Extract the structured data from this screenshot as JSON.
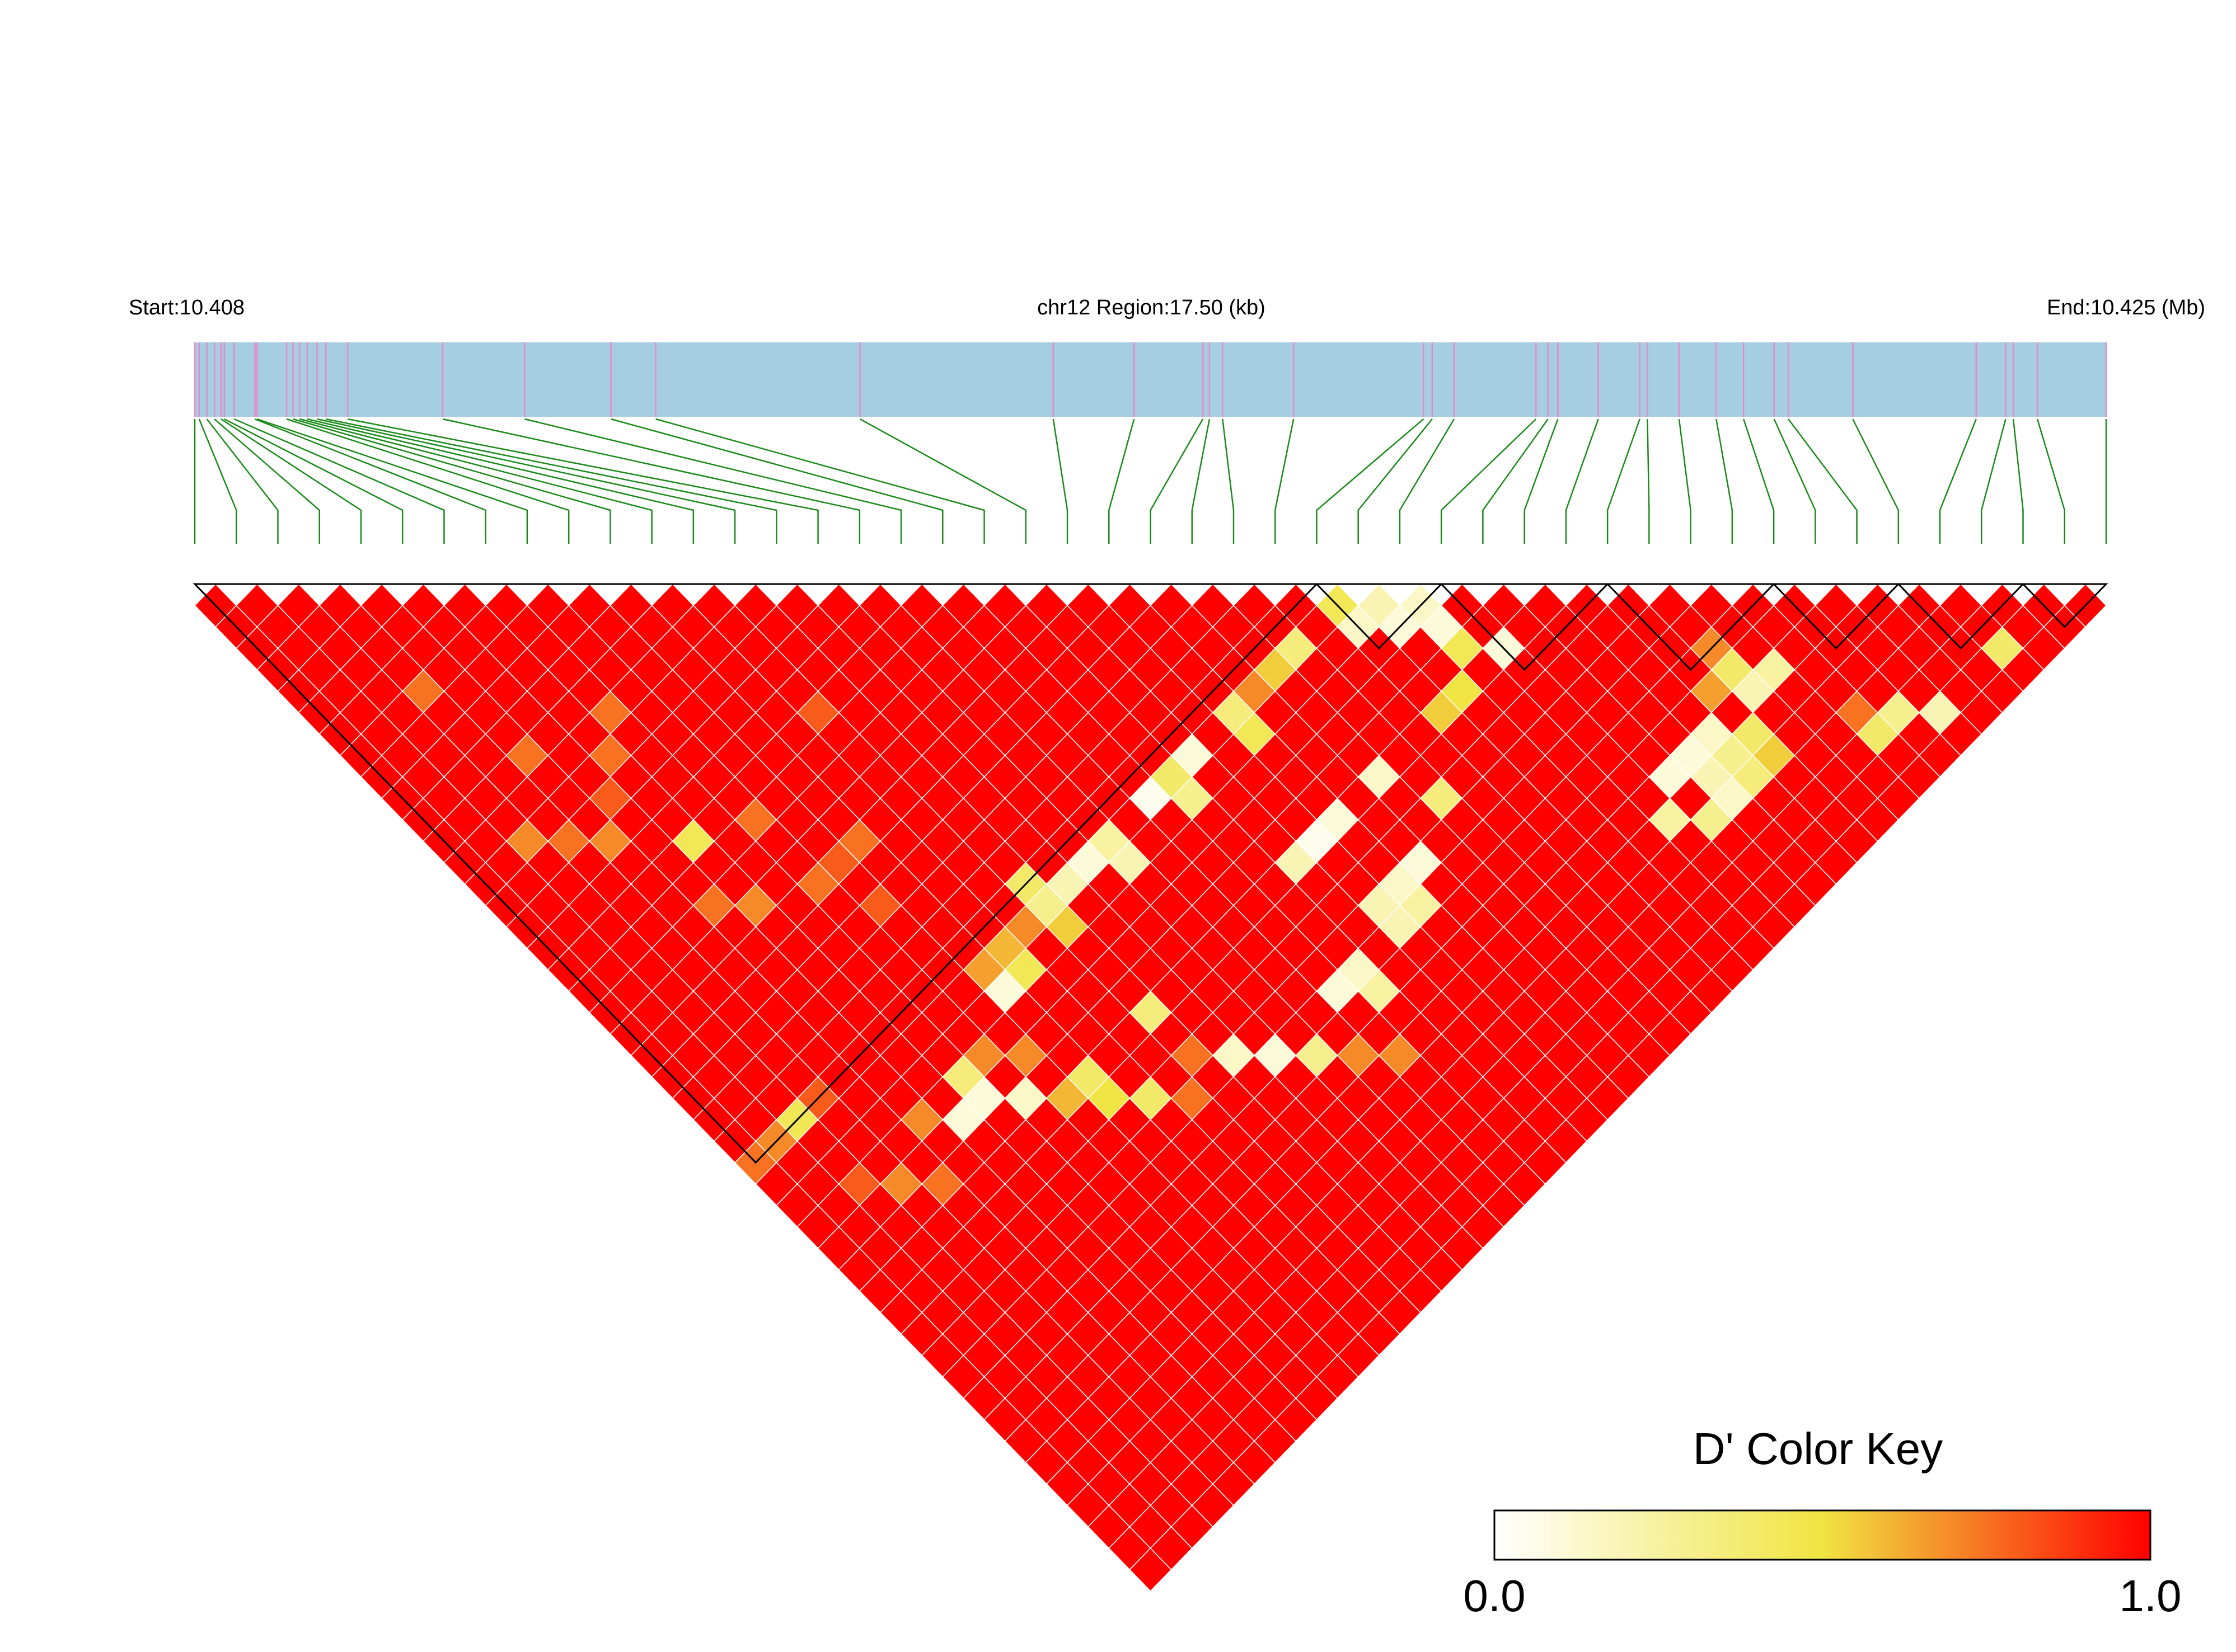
{
  "chart_data": {
    "type": "heatmap",
    "start_label": "Start:10.408",
    "region_label": "chr12 Region:17.50 (kb)",
    "end_label": "End:10.425 (Mb)",
    "snp_count": 47,
    "snp_positions_kb": [
      0.0,
      0.04,
      0.11,
      0.18,
      0.24,
      0.27,
      0.36,
      0.55,
      0.57,
      0.84,
      0.9,
      0.96,
      1.03,
      1.12,
      1.2,
      1.4,
      2.27,
      3.02,
      3.81,
      4.22,
      6.09,
      7.86,
      8.6,
      9.23,
      9.29,
      9.41,
      10.06,
      11.25,
      11.33,
      11.53,
      12.28,
      12.39,
      12.48,
      12.85,
      13.23,
      13.3,
      13.59,
      13.93,
      14.18,
      14.46,
      14.59,
      15.18,
      16.31,
      16.58,
      16.65,
      16.87,
      17.5
    ],
    "ld_blocks": [
      [
        0,
        27
      ],
      [
        27,
        30
      ],
      [
        30,
        34
      ],
      [
        34,
        38
      ],
      [
        38,
        41
      ],
      [
        41,
        44
      ],
      [
        44,
        46
      ]
    ],
    "anomalies": [
      {
        "i": 27,
        "j": 28,
        "v": 0.45
      },
      {
        "i": 28,
        "j": 29,
        "v": 0.2
      },
      {
        "i": 29,
        "j": 30,
        "v": 0.15
      },
      {
        "i": 27,
        "j": 29,
        "v": 0.15
      },
      {
        "i": 28,
        "j": 30,
        "v": 0.1
      },
      {
        "i": 25,
        "j": 28,
        "v": 0.35
      },
      {
        "i": 24,
        "j": 28,
        "v": 0.55
      },
      {
        "i": 23,
        "j": 28,
        "v": 0.7
      },
      {
        "i": 22,
        "j": 28,
        "v": 0.35
      },
      {
        "i": 20,
        "j": 28,
        "v": 0.1
      },
      {
        "i": 19,
        "j": 28,
        "v": 0.4
      },
      {
        "i": 18,
        "j": 28,
        "v": 0.05
      },
      {
        "i": 16,
        "j": 28,
        "v": 0.25
      },
      {
        "i": 15,
        "j": 28,
        "v": 0.1
      },
      {
        "i": 14,
        "j": 28,
        "v": 0.2
      },
      {
        "i": 13,
        "j": 28,
        "v": 0.3
      },
      {
        "i": 12,
        "j": 28,
        "v": 0.7
      },
      {
        "i": 11,
        "j": 28,
        "v": 0.6
      },
      {
        "i": 10,
        "j": 28,
        "v": 0.65
      },
      {
        "i": 10,
        "j": 29,
        "v": 0.1
      },
      {
        "i": 11,
        "j": 29,
        "v": 0.45
      },
      {
        "i": 13,
        "j": 29,
        "v": 0.55
      },
      {
        "i": 16,
        "j": 29,
        "v": 0.2
      },
      {
        "i": 19,
        "j": 29,
        "v": 0.3
      },
      {
        "i": 22,
        "j": 29,
        "v": 0.45
      },
      {
        "i": 29,
        "j": 31,
        "v": 0.1
      },
      {
        "i": 29,
        "j": 32,
        "v": 0.45
      },
      {
        "i": 30,
        "j": 33,
        "v": 0.1
      },
      {
        "i": 28,
        "j": 33,
        "v": 0.5
      },
      {
        "i": 27,
        "j": 33,
        "v": 0.55
      },
      {
        "i": 24,
        "j": 33,
        "v": 0.15
      },
      {
        "i": 22,
        "j": 33,
        "v": 0.1
      },
      {
        "i": 21,
        "j": 33,
        "v": 0.05
      },
      {
        "i": 20,
        "j": 33,
        "v": 0.2
      },
      {
        "i": 23,
        "j": 36,
        "v": 0.1
      },
      {
        "i": 22,
        "j": 36,
        "v": 0.15
      },
      {
        "i": 21,
        "j": 36,
        "v": 0.2
      },
      {
        "i": 21,
        "j": 37,
        "v": 0.2
      },
      {
        "i": 22,
        "j": 37,
        "v": 0.25
      },
      {
        "i": 35,
        "j": 38,
        "v": 0.7
      },
      {
        "i": 34,
        "j": 39,
        "v": 0.65
      },
      {
        "i": 35,
        "j": 39,
        "v": 0.4
      },
      {
        "i": 35,
        "j": 40,
        "v": 0.2
      },
      {
        "i": 36,
        "j": 40,
        "v": 0.25
      },
      {
        "i": 33,
        "j": 40,
        "v": 0.15
      },
      {
        "i": 32,
        "j": 40,
        "v": 0.1
      },
      {
        "i": 31,
        "j": 40,
        "v": 0.1
      },
      {
        "i": 32,
        "j": 41,
        "v": 0.2
      },
      {
        "i": 33,
        "j": 41,
        "v": 0.3
      },
      {
        "i": 34,
        "j": 41,
        "v": 0.4
      },
      {
        "i": 30,
        "j": 41,
        "v": 0.25
      },
      {
        "i": 31,
        "j": 42,
        "v": 0.3
      },
      {
        "i": 32,
        "j": 42,
        "v": 0.15
      },
      {
        "i": 33,
        "j": 42,
        "v": 0.35
      },
      {
        "i": 34,
        "j": 42,
        "v": 0.55
      },
      {
        "i": 42,
        "j": 45,
        "v": 0.4
      },
      {
        "i": 3,
        "j": 8,
        "v": 0.75
      },
      {
        "i": 7,
        "j": 13,
        "v": 0.75
      },
      {
        "i": 6,
        "j": 14,
        "v": 0.75
      },
      {
        "i": 12,
        "j": 18,
        "v": 0.8
      },
      {
        "i": 13,
        "j": 27,
        "v": 0.4
      },
      {
        "i": 9,
        "j": 24,
        "v": 0.8
      },
      {
        "i": 4,
        "j": 12,
        "v": 0.75
      },
      {
        "i": 6,
        "j": 18,
        "v": 0.45
      },
      {
        "i": 8,
        "j": 22,
        "v": 0.75
      },
      {
        "i": 9,
        "j": 22,
        "v": 0.8
      },
      {
        "i": 10,
        "j": 22,
        "v": 0.75
      },
      {
        "i": 5,
        "j": 15,
        "v": 0.8
      },
      {
        "i": 2,
        "j": 14,
        "v": 0.7
      },
      {
        "i": 3,
        "j": 15,
        "v": 0.75
      },
      {
        "i": 4,
        "j": 16,
        "v": 0.7
      },
      {
        "i": 8,
        "j": 19,
        "v": 0.75
      },
      {
        "i": 5,
        "j": 20,
        "v": 0.75
      },
      {
        "i": 6,
        "j": 21,
        "v": 0.7
      },
      {
        "i": 1,
        "j": 27,
        "v": 0.7
      },
      {
        "i": 2,
        "j": 27,
        "v": 0.45
      },
      {
        "i": 0,
        "j": 27,
        "v": 0.75
      },
      {
        "i": 3,
        "j": 27,
        "v": 0.8
      },
      {
        "i": 7,
        "j": 30,
        "v": 0.35
      },
      {
        "i": 8,
        "j": 30,
        "v": 0.7
      },
      {
        "i": 9,
        "j": 31,
        "v": 0.7
      },
      {
        "i": 5,
        "j": 30,
        "v": 0.7
      },
      {
        "i": 6,
        "j": 31,
        "v": 0.1
      },
      {
        "i": 7,
        "j": 31,
        "v": 0.1
      },
      {
        "i": 8,
        "j": 32,
        "v": 0.15
      },
      {
        "i": 10,
        "j": 34,
        "v": 0.5
      },
      {
        "i": 11,
        "j": 35,
        "v": 0.4
      },
      {
        "i": 12,
        "j": 36,
        "v": 0.75
      },
      {
        "i": 3,
        "j": 31,
        "v": 0.7
      },
      {
        "i": 2,
        "j": 30,
        "v": 0.8
      },
      {
        "i": 4,
        "j": 32,
        "v": 0.75
      },
      {
        "i": 13,
        "j": 35,
        "v": 0.75
      },
      {
        "i": 14,
        "j": 36,
        "v": 0.15
      },
      {
        "i": 15,
        "j": 37,
        "v": 0.1
      },
      {
        "i": 16,
        "j": 38,
        "v": 0.3
      },
      {
        "i": 9,
        "j": 33,
        "v": 0.6
      },
      {
        "i": 10,
        "j": 33,
        "v": 0.4
      },
      {
        "i": 13,
        "j": 33,
        "v": 0.35
      },
      {
        "i": 17,
        "j": 39,
        "v": 0.7
      },
      {
        "i": 18,
        "j": 40,
        "v": 0.7
      },
      {
        "i": 25,
        "j": 35,
        "v": 0.35
      },
      {
        "i": 18,
        "j": 37,
        "v": 0.1
      },
      {
        "i": 19,
        "j": 37,
        "v": 0.15
      },
      {
        "i": 19,
        "j": 38,
        "v": 0.25
      },
      {
        "i": 37,
        "j": 44,
        "v": 0.4
      },
      {
        "i": 38,
        "j": 44,
        "v": 0.3
      },
      {
        "i": 39,
        "j": 45,
        "v": 0.2
      },
      {
        "i": 37,
        "j": 43,
        "v": 0.75
      }
    ],
    "color_scale": {
      "title": "D' Color Key",
      "min_label": "0.0",
      "max_label": "1.0",
      "min_color": "#ffffff",
      "mid_color": "#f0e442",
      "max_color": "#ff0000"
    },
    "colors": {
      "track_fill": "#a6cee3",
      "snp_tick": "#e68ac8",
      "connector_line": "#1a8a1a",
      "block_outline": "#000000",
      "cell_border": "#ffffff"
    }
  }
}
